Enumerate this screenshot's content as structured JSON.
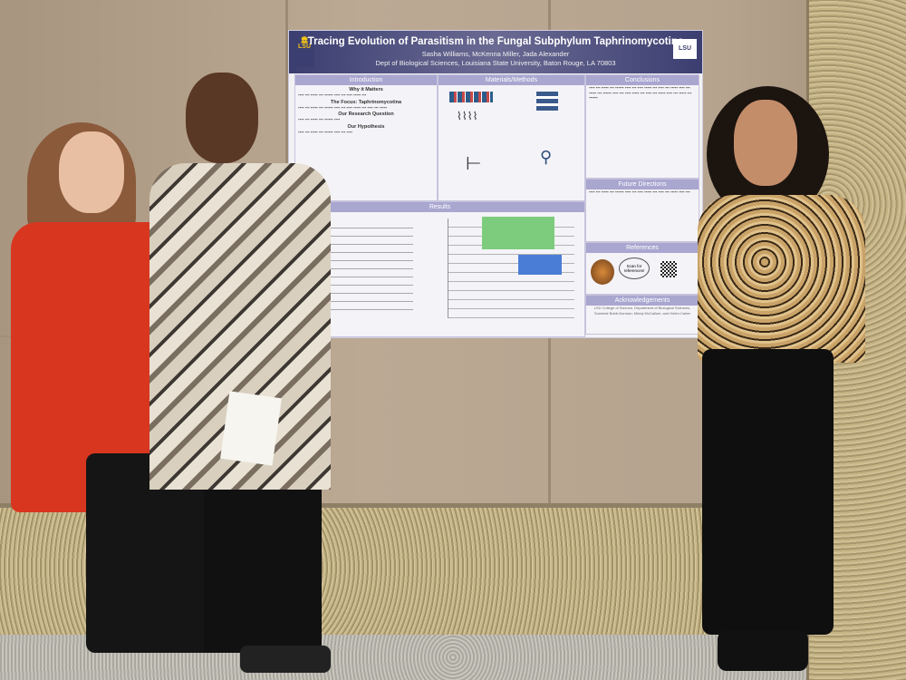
{
  "poster": {
    "title": "Tracing Evolution of Parasitism in the Fungal Subphylum Taphrinomycotina",
    "authors": "Sasha Williams, McKenna Miller, Jada Alexander",
    "affiliation": "Dept of Biological Sciences, Louisiana State University, Baton Rouge, LA 70803",
    "logo_left": "LSU",
    "logo_right": "LSU",
    "sections": {
      "introduction": {
        "heading": "Introduction",
        "subheadings": [
          "Why it Matters",
          "The Focus: Taphrinomycotina",
          "Our Research Question",
          "Our Hypothesis"
        ]
      },
      "methods": {
        "heading": "Materials/Methods"
      },
      "results": {
        "heading": "Results"
      },
      "conclusions": {
        "heading": "Conclusions"
      },
      "future": {
        "heading": "Future Directions"
      },
      "references": {
        "heading": "References",
        "bubble": "Scan for references!"
      },
      "acknowledgements": {
        "heading": "Acknowledgements",
        "text": "LSU College of Science, Department of Biological Sciences, Sunniest Bobb-Norman, Mindy McCallum, and Helen Carter"
      }
    },
    "colors": {
      "header": "#3b3e70",
      "section_header": "#a9a6d0"
    }
  }
}
